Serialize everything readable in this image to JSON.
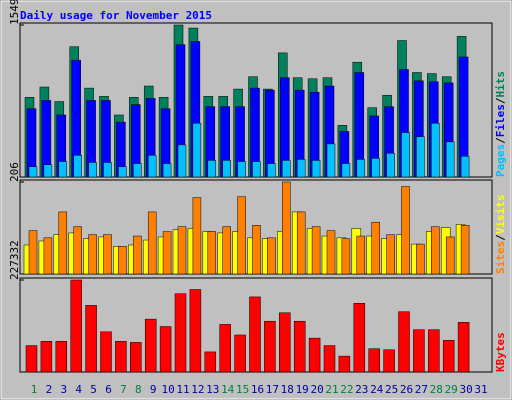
{
  "chart_data": [
    {
      "type": "bar",
      "title": "Daily usage for November 2015",
      "ylim": [
        0,
        1549
      ],
      "yticks": [
        1549
      ],
      "legend_separator": "/",
      "series": [
        {
          "name": "Hits",
          "color": "#00805c",
          "values": [
            812,
            917,
            769,
            1328,
            906,
            822,
            632,
            812,
            927,
            812,
            1549,
            1518,
            822,
            822,
            896,
            1022,
            896,
            1265,
            1012,
            1001,
            1012,
            527,
            1170,
            706,
            833,
            1391,
            1065,
            1054,
            1022,
            1433,
            null
          ]
        },
        {
          "name": "Files",
          "color": "#0000ff",
          "values": [
            696,
            780,
            632,
            1191,
            780,
            780,
            559,
            738,
            801,
            696,
            1349,
            1381,
            717,
            717,
            717,
            906,
            885,
            1012,
            885,
            864,
            927,
            464,
            1065,
            622,
            717,
            1096,
            980,
            970,
            959,
            1223,
            null
          ]
        },
        {
          "name": "Pages",
          "color": "#00c0ff",
          "values": [
            105,
            126,
            158,
            221,
            148,
            148,
            105,
            137,
            221,
            137,
            327,
            548,
            169,
            169,
            158,
            158,
            137,
            169,
            179,
            169,
            337,
            137,
            179,
            190,
            242,
            453,
            411,
            548,
            358,
            211,
            null
          ]
        }
      ]
    },
    {
      "type": "bar",
      "ylim": [
        0,
        206
      ],
      "yticks": [
        206
      ],
      "legend_separator": "/",
      "series": [
        {
          "name": "Visits",
          "color": "#ffff00",
          "values": [
            65,
            74,
            88,
            92,
            79,
            83,
            62,
            65,
            76,
            83,
            99,
            102,
            95,
            92,
            95,
            81,
            79,
            95,
            139,
            102,
            85,
            81,
            102,
            85,
            79,
            88,
            67,
            95,
            104,
            111,
            null
          ]
        },
        {
          "name": "Sites",
          "color": "#ff8000",
          "values": [
            97,
            81,
            139,
            106,
            88,
            88,
            62,
            85,
            139,
            95,
            106,
            171,
            95,
            106,
            173,
            109,
            81,
            206,
            139,
            106,
            97,
            79,
            85,
            116,
            88,
            196,
            67,
            106,
            83,
            109,
            null
          ]
        }
      ]
    },
    {
      "type": "bar",
      "ylim": [
        0,
        227332
      ],
      "yticks": [
        227332
      ],
      "categories": [
        "1",
        "2",
        "3",
        "4",
        "5",
        "6",
        "7",
        "8",
        "9",
        "10",
        "11",
        "12",
        "13",
        "14",
        "15",
        "16",
        "17",
        "18",
        "19",
        "20",
        "21",
        "22",
        "23",
        "24",
        "25",
        "26",
        "27",
        "28",
        "29",
        "30",
        "31"
      ],
      "category_colors": [
        "#008040",
        "#0000a0",
        "#0000a0",
        "#0000a0",
        "#0000a0",
        "#0000a0",
        "#008040",
        "#008040",
        "#0000a0",
        "#0000a0",
        "#0000a0",
        "#0000a0",
        "#0000a0",
        "#008040",
        "#008040",
        "#0000a0",
        "#0000a0",
        "#0000a0",
        "#0000a0",
        "#0000a0",
        "#008040",
        "#008040",
        "#0000a0",
        "#0000a0",
        "#0000a0",
        "#0000a0",
        "#0000a0",
        "#008040",
        "#008040",
        "#0000a0",
        "#0000a0"
      ],
      "series": [
        {
          "name": "KBytes",
          "color": "#ff0000",
          "values": [
            65325,
            75777,
            75777,
            227332,
            164619,
            99294,
            75777,
            73164,
            130650,
            112359,
            193362,
            203814,
            49647,
            117585,
            91455,
            185523,
            125424,
            146328,
            125424,
            83616,
            65325,
            39195,
            169845,
            57486,
            54873,
            148941,
            104520,
            104520,
            78390,
            122811,
            null
          ]
        }
      ]
    }
  ]
}
